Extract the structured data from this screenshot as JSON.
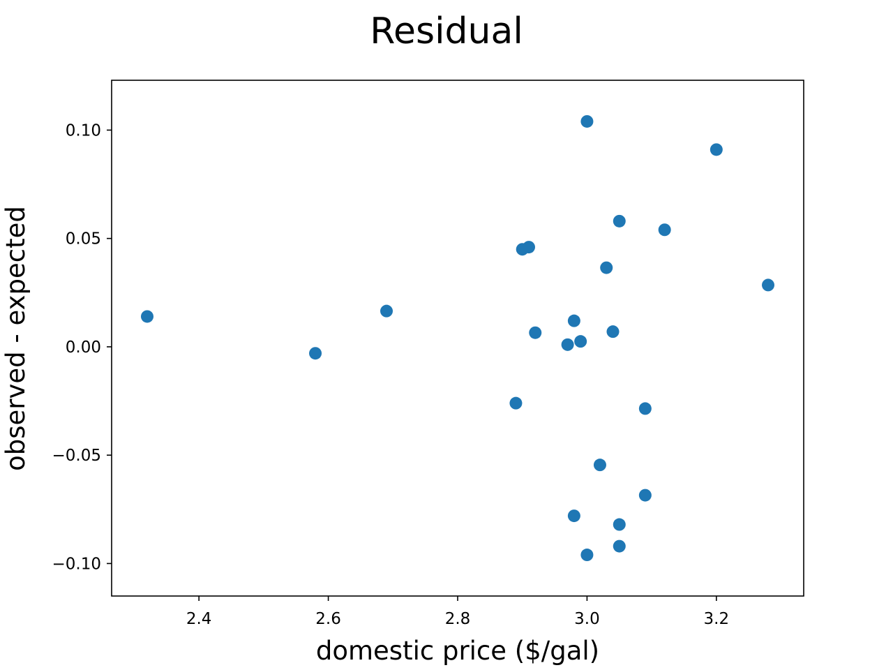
{
  "chart_data": {
    "type": "scatter",
    "title": "Residual",
    "xlabel": "domestic price ($/gal)",
    "ylabel": "observed - expected",
    "xlim": [
      2.265,
      3.335
    ],
    "ylim": [
      -0.115,
      0.123
    ],
    "xticks": [
      2.4,
      2.6,
      2.8,
      3.0,
      3.2
    ],
    "xtick_labels": [
      "2.4",
      "2.6",
      "2.8",
      "3.0",
      "3.2"
    ],
    "yticks": [
      0.1,
      0.05,
      0.0,
      -0.05,
      -0.1
    ],
    "ytick_labels": [
      "0.10",
      "0.05",
      "0.00",
      "−0.05",
      "−0.10"
    ],
    "grid": false,
    "marker_color": "#1f77b4",
    "series": [
      {
        "points": [
          {
            "x": 2.32,
            "y": 0.014
          },
          {
            "x": 2.58,
            "y": -0.003
          },
          {
            "x": 2.69,
            "y": 0.0165
          },
          {
            "x": 2.89,
            "y": -0.026
          },
          {
            "x": 2.9,
            "y": 0.045
          },
          {
            "x": 2.91,
            "y": 0.046
          },
          {
            "x": 2.92,
            "y": 0.0065
          },
          {
            "x": 2.97,
            "y": 0.001
          },
          {
            "x": 2.98,
            "y": 0.012
          },
          {
            "x": 2.98,
            "y": -0.078
          },
          {
            "x": 2.99,
            "y": 0.0025
          },
          {
            "x": 3.0,
            "y": 0.104
          },
          {
            "x": 3.0,
            "y": -0.096
          },
          {
            "x": 3.02,
            "y": -0.0545
          },
          {
            "x": 3.03,
            "y": 0.0365
          },
          {
            "x": 3.04,
            "y": 0.007
          },
          {
            "x": 3.05,
            "y": 0.058
          },
          {
            "x": 3.05,
            "y": -0.082
          },
          {
            "x": 3.05,
            "y": -0.092
          },
          {
            "x": 3.09,
            "y": -0.0285
          },
          {
            "x": 3.09,
            "y": -0.0685
          },
          {
            "x": 3.12,
            "y": 0.054
          },
          {
            "x": 3.2,
            "y": 0.091
          },
          {
            "x": 3.28,
            "y": 0.0285
          }
        ]
      }
    ]
  }
}
